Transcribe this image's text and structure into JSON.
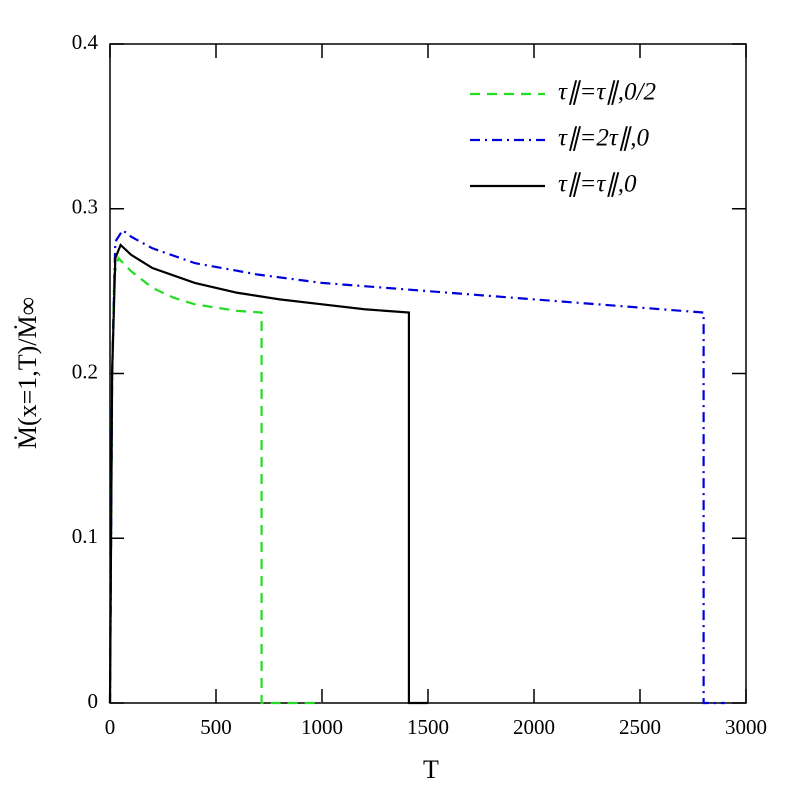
{
  "chart_data": {
    "type": "line",
    "xlabel": "T",
    "ylabel": "Ṁ(x=1,T)/Ṁ∞",
    "xlim": [
      0,
      3000
    ],
    "xticks": [
      0,
      500,
      1000,
      1500,
      2000,
      2500,
      3000
    ],
    "ylim": [
      0,
      0.4
    ],
    "yticks": [
      0,
      0.1,
      0.2,
      0.3,
      0.4
    ],
    "legend": "upper right",
    "series": [
      {
        "name": "τ∥=τ∥,0/2",
        "color": "#22dd22",
        "dash": "dashed",
        "x": [
          0,
          10,
          20,
          40,
          100,
          200,
          300,
          400,
          500,
          600,
          715,
          715,
          1000
        ],
        "values": [
          0,
          0.2,
          0.26,
          0.27,
          0.262,
          0.252,
          0.246,
          0.242,
          0.24,
          0.238,
          0.237,
          0,
          0
        ]
      },
      {
        "name": "τ∥=2τ∥,0",
        "color": "#0000dd",
        "dash": "dashdot",
        "x": [
          0,
          10,
          25,
          60,
          100,
          200,
          400,
          700,
          1000,
          1500,
          2000,
          2500,
          2800,
          2800,
          2900
        ],
        "values": [
          0,
          0.2,
          0.28,
          0.287,
          0.283,
          0.276,
          0.267,
          0.26,
          0.255,
          0.25,
          0.245,
          0.24,
          0.237,
          0,
          0
        ]
      },
      {
        "name": "τ∥=τ∥,0",
        "color": "#000000",
        "dash": "solid",
        "x": [
          0,
          10,
          25,
          50,
          100,
          200,
          400,
          600,
          800,
          1000,
          1200,
          1410,
          1410,
          1500
        ],
        "values": [
          0,
          0.2,
          0.27,
          0.278,
          0.272,
          0.264,
          0.255,
          0.249,
          0.245,
          0.242,
          0.239,
          0.237,
          0,
          0
        ]
      }
    ]
  }
}
